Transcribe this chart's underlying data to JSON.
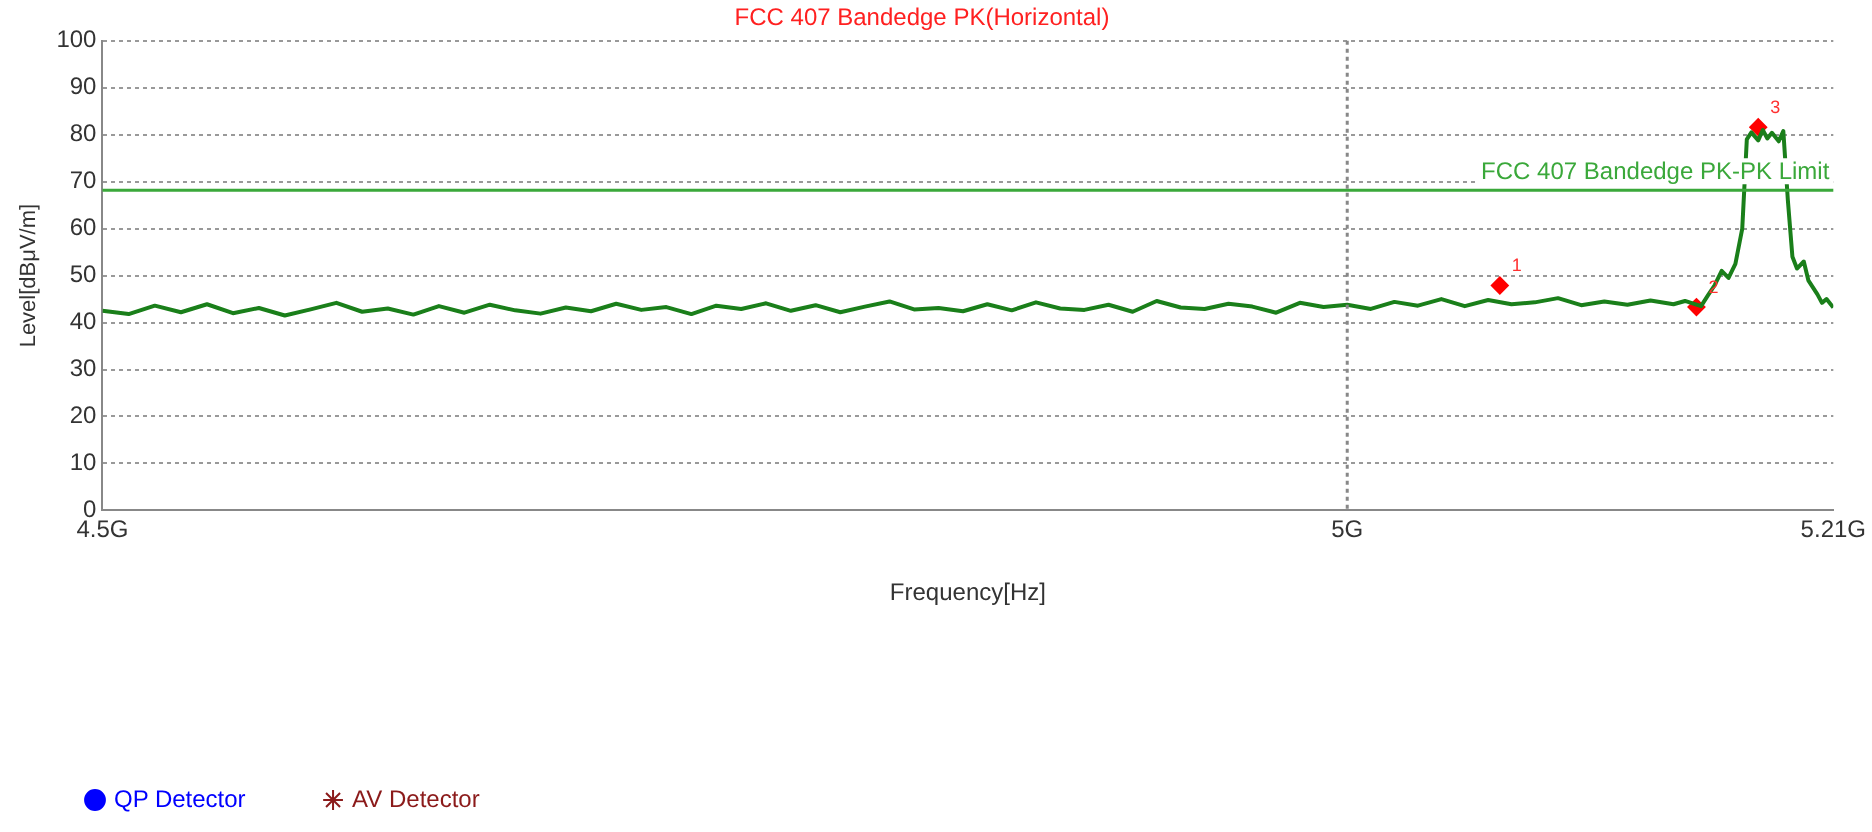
{
  "chart_data": {
    "type": "line",
    "title": "FCC 407 Bandedge PK(Horizontal)",
    "xlabel": "Frequency[Hz]",
    "ylabel": "Level[dBμV/m]",
    "log": "x",
    "grid": "y",
    "xlim": [
      4.5,
      5.21
    ],
    "xticks": [
      {
        "value": 4.5,
        "label": "4.5G"
      },
      {
        "value": 5,
        "label": "5G"
      },
      {
        "value": 5.21,
        "label": "5.21G"
      }
    ],
    "ylim": [
      0,
      100
    ],
    "yticks": [
      0,
      10,
      20,
      30,
      40,
      50,
      60,
      70,
      80,
      90,
      100
    ],
    "legend": "bottom left",
    "ref_lines": [
      {
        "axis": "y",
        "value": 68.2,
        "label": "FCC 407 Bandedge PK-PK Limit",
        "color": "#3aa83a"
      },
      {
        "axis": "x",
        "value": 5,
        "color": "#888888",
        "line_style": "dotted"
      }
    ],
    "annotations": [
      {
        "text": "1",
        "x": 5.065,
        "y": 47.9
      },
      {
        "text": "2",
        "x": 5.15,
        "y": 43.3
      },
      {
        "text": "3",
        "x": 5.177,
        "y": 81.6
      }
    ],
    "series": [
      {
        "color": "#1a7f1a",
        "marker": "none",
        "x": [
          4.5,
          4.51,
          4.52,
          4.53,
          4.54,
          4.55,
          4.56,
          4.57,
          4.58,
          4.59,
          4.6,
          4.61,
          4.62,
          4.63,
          4.64,
          4.65,
          4.66,
          4.67,
          4.68,
          4.69,
          4.7,
          4.71,
          4.72,
          4.73,
          4.74,
          4.75,
          4.76,
          4.77,
          4.78,
          4.79,
          4.8,
          4.81,
          4.82,
          4.83,
          4.84,
          4.85,
          4.86,
          4.87,
          4.88,
          4.89,
          4.9,
          4.91,
          4.92,
          4.93,
          4.94,
          4.95,
          4.96,
          4.97,
          4.98,
          4.99,
          5,
          5.01,
          5.02,
          5.03,
          5.04,
          5.05,
          5.06,
          5.07,
          5.08,
          5.09,
          5.1,
          5.11,
          5.12,
          5.13,
          5.14,
          5.145,
          5.152,
          5.155,
          5.158,
          5.161,
          5.164,
          5.167,
          5.17,
          5.172,
          5.174,
          5.177,
          5.179,
          5.181,
          5.183,
          5.186,
          5.188,
          5.19,
          5.192,
          5.194,
          5.197,
          5.199,
          5.201,
          5.203,
          5.205,
          5.207,
          5.21
        ],
        "values": [
          42.5,
          41.8,
          43.6,
          42.2,
          43.9,
          42.0,
          43.1,
          41.5,
          42.8,
          44.2,
          42.3,
          43.0,
          41.7,
          43.5,
          42.1,
          43.8,
          42.6,
          41.9,
          43.2,
          42.4,
          44.0,
          42.7,
          43.3,
          41.8,
          43.6,
          42.9,
          44.1,
          42.5,
          43.7,
          42.2,
          43.4,
          44.5,
          42.8,
          43.1,
          42.4,
          43.9,
          42.6,
          44.3,
          43.0,
          42.7,
          43.8,
          42.3,
          44.6,
          43.2,
          42.9,
          44.0,
          43.4,
          42.1,
          44.2,
          43.3,
          43.8,
          42.9,
          44.4,
          43.6,
          45.0,
          43.5,
          44.8,
          43.9,
          44.3,
          45.2,
          43.7,
          44.5,
          43.8,
          44.7,
          43.9,
          44.6,
          43.5,
          45.8,
          48.0,
          51.0,
          49.5,
          52.5,
          60.0,
          79.0,
          80.5,
          78.8,
          81.0,
          79.2,
          80.4,
          78.6,
          80.8,
          66.0,
          54.0,
          51.5,
          53.0,
          49.0,
          47.5,
          46.0,
          44.2,
          45.0,
          43.2
        ]
      },
      {
        "type": "scatter",
        "color": "#ff0000",
        "marker": "diamond",
        "x": [
          5.065,
          5.15,
          5.177
        ],
        "values": [
          47.9,
          43.3,
          81.6
        ]
      },
      {
        "type": "scatter",
        "name": "QP Detector",
        "color": "#0000ff",
        "marker": "circle"
      },
      {
        "type": "scatter",
        "name": "AV Detector",
        "color": "#8b1a1a",
        "marker": "star"
      }
    ]
  }
}
